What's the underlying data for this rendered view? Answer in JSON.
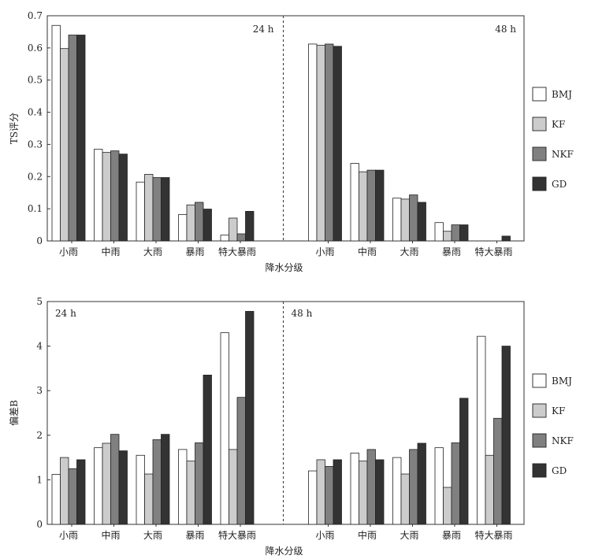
{
  "chart_data": [
    {
      "type": "bar",
      "ylabel": "TS评分",
      "xlabel": "降水分级",
      "ylim": [
        0,
        0.7
      ],
      "yticks": [
        "0",
        "0.1",
        "0.2",
        "0.3",
        "0.4",
        "0.5",
        "0.6",
        "0.7"
      ],
      "groups": [
        {
          "label": "24 h",
          "categories": [
            "小雨",
            "中雨",
            "大雨",
            "暴雨",
            "特大暴雨"
          ],
          "series": [
            {
              "name": "BMJ",
              "values": [
                0.67,
                0.285,
                0.183,
                0.082,
                0.018
              ]
            },
            {
              "name": "KF",
              "values": [
                0.598,
                0.275,
                0.207,
                0.112,
                0.071
              ]
            },
            {
              "name": "NKF",
              "values": [
                0.64,
                0.28,
                0.197,
                0.12,
                0.022
              ]
            },
            {
              "name": "GD",
              "values": [
                0.64,
                0.27,
                0.197,
                0.099,
                0.092
              ]
            }
          ]
        },
        {
          "label": "48 h",
          "categories": [
            "小雨",
            "中雨",
            "大雨",
            "暴雨",
            "特大暴雨"
          ],
          "series": [
            {
              "name": "BMJ",
              "values": [
                0.612,
                0.241,
                0.133,
                0.057,
                0
              ]
            },
            {
              "name": "KF",
              "values": [
                0.608,
                0.215,
                0.13,
                0.03,
                0
              ]
            },
            {
              "name": "NKF",
              "values": [
                0.612,
                0.22,
                0.143,
                0.05,
                0
              ]
            },
            {
              "name": "GD",
              "values": [
                0.605,
                0.22,
                0.12,
                0.05,
                0.015
              ]
            }
          ]
        }
      ],
      "legend": [
        "BMJ",
        "KF",
        "NKF",
        "GD"
      ],
      "legend_position": "right"
    },
    {
      "type": "bar",
      "ylabel": "偏差B",
      "xlabel": "降水分级",
      "ylim": [
        0,
        5
      ],
      "yticks": [
        "0",
        "1",
        "2",
        "3",
        "4",
        "5"
      ],
      "groups": [
        {
          "label": "24 h",
          "categories": [
            "小雨",
            "中雨",
            "大雨",
            "暴雨",
            "特大暴雨"
          ],
          "series": [
            {
              "name": "BMJ",
              "values": [
                1.12,
                1.72,
                1.55,
                1.68,
                4.3
              ]
            },
            {
              "name": "KF",
              "values": [
                1.5,
                1.82,
                1.13,
                1.42,
                1.68
              ]
            },
            {
              "name": "NKF",
              "values": [
                1.25,
                2.02,
                1.9,
                1.83,
                2.85
              ]
            },
            {
              "name": "GD",
              "values": [
                1.45,
                1.65,
                2.02,
                3.35,
                4.78
              ]
            }
          ]
        },
        {
          "label": "48 h",
          "categories": [
            "小雨",
            "中雨",
            "大雨",
            "暴雨",
            "特大暴雨"
          ],
          "series": [
            {
              "name": "BMJ",
              "values": [
                1.2,
                1.6,
                1.5,
                1.72,
                4.22
              ]
            },
            {
              "name": "KF",
              "values": [
                1.45,
                1.42,
                1.13,
                0.83,
                1.55
              ]
            },
            {
              "name": "NKF",
              "values": [
                1.3,
                1.68,
                1.68,
                1.83,
                2.38
              ]
            },
            {
              "name": "GD",
              "values": [
                1.45,
                1.45,
                1.82,
                2.83,
                4.0
              ]
            }
          ]
        }
      ],
      "legend": [
        "BMJ",
        "KF",
        "NKF",
        "GD"
      ],
      "legend_position": "right"
    }
  ],
  "colors": {
    "BMJ": "#ffffff",
    "KF": "#cccccc",
    "NKF": "#808080",
    "GD": "#333333"
  }
}
